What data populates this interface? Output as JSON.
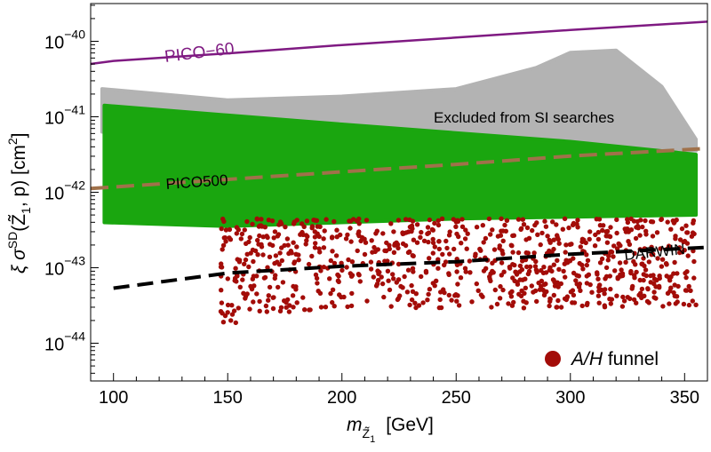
{
  "chart_data": {
    "type": "scatter",
    "xlim": [
      90,
      360
    ],
    "ylim_log10": [
      -44.5,
      -39.5
    ],
    "x_ticks": [
      {
        "value": 100,
        "label": "100"
      },
      {
        "value": 150,
        "label": "150"
      },
      {
        "value": 200,
        "label": "200"
      },
      {
        "value": 250,
        "label": "250"
      },
      {
        "value": 300,
        "label": "300"
      },
      {
        "value": 350,
        "label": "350"
      }
    ],
    "y_ticks": [
      {
        "exp": -44,
        "base": "10",
        "power": "−44"
      },
      {
        "exp": -43,
        "base": "10",
        "power": "−43"
      },
      {
        "exp": -42,
        "base": "10",
        "power": "−42"
      },
      {
        "exp": -41,
        "base": "10",
        "power": "−41"
      },
      {
        "exp": -40,
        "base": "10",
        "power": "−40"
      }
    ],
    "xlabel": {
      "main": "m",
      "sub": "Z̃",
      "subsub": "1",
      "unit": "[GeV]"
    },
    "ylabel": {
      "xi": "ξ",
      "sigma": "σ",
      "sup": "SD",
      "args": "(Z̃",
      "argsub": "1",
      "tail": ", p) [cm",
      "unitsup": "2",
      "close": "]"
    },
    "lines": [
      {
        "name": "PICO-60",
        "label": "PICO−60",
        "color": "#7f1a82",
        "style": "solid",
        "points": [
          [
            90,
            -40.3
          ],
          [
            100,
            -40.26
          ],
          [
            150,
            -40.16
          ],
          [
            200,
            -40.05
          ],
          [
            250,
            -39.95
          ],
          [
            300,
            -39.85
          ],
          [
            360,
            -39.74
          ]
        ]
      },
      {
        "name": "PICO500",
        "label": "PICO500",
        "color": "#a0714a",
        "style": "dashed",
        "points": [
          [
            90,
            -41.95
          ],
          [
            150,
            -41.83
          ],
          [
            200,
            -41.73
          ],
          [
            250,
            -41.63
          ],
          [
            300,
            -41.52
          ],
          [
            360,
            -41.42
          ]
        ]
      },
      {
        "name": "DARWIN",
        "label": "DARWIN",
        "color": "#000000",
        "style": "dashed",
        "points": [
          [
            100,
            -43.27
          ],
          [
            150,
            -43.07
          ],
          [
            200,
            -42.98
          ],
          [
            250,
            -42.92
          ],
          [
            300,
            -42.82
          ],
          [
            360,
            -42.73
          ]
        ]
      }
    ],
    "regions": [
      {
        "name": "excluded-si",
        "label": "Excluded from SI searches",
        "color": "#b3b3b3",
        "x_range": [
          95,
          355
        ],
        "upper": [
          [
            95,
            -40.63
          ],
          [
            150,
            -40.78
          ],
          [
            200,
            -40.73
          ],
          [
            250,
            -40.63
          ],
          [
            285,
            -40.35
          ],
          [
            300,
            -40.15
          ],
          [
            320,
            -40.12
          ],
          [
            340,
            -40.6
          ],
          [
            355,
            -41.3
          ]
        ],
        "lower": [
          [
            95,
            -41.2
          ],
          [
            200,
            -41.35
          ],
          [
            300,
            -41.4
          ],
          [
            355,
            -41.45
          ]
        ]
      },
      {
        "name": "green-points",
        "label": "",
        "color": "#1aa60f",
        "x_range": [
          96,
          355
        ],
        "upper": [
          [
            96,
            -40.85
          ],
          [
            200,
            -41.1
          ],
          [
            300,
            -41.33
          ],
          [
            355,
            -41.5
          ]
        ],
        "lower": [
          [
            96,
            -42.4
          ],
          [
            150,
            -42.45
          ],
          [
            250,
            -42.35
          ],
          [
            355,
            -42.3
          ]
        ]
      }
    ],
    "series": [
      {
        "name": "A/H funnel",
        "label_italic": "A/H",
        "label_rest": " funnel",
        "color": "#a30c08",
        "marker": "circle",
        "x_range": [
          147,
          355
        ],
        "upper": -42.35,
        "lower": [
          [
            147,
            -43.7
          ],
          [
            150,
            -43.9
          ],
          [
            160,
            -43.7
          ],
          [
            200,
            -43.55
          ],
          [
            300,
            -43.55
          ],
          [
            355,
            -43.5
          ]
        ],
        "count": 900
      }
    ]
  }
}
